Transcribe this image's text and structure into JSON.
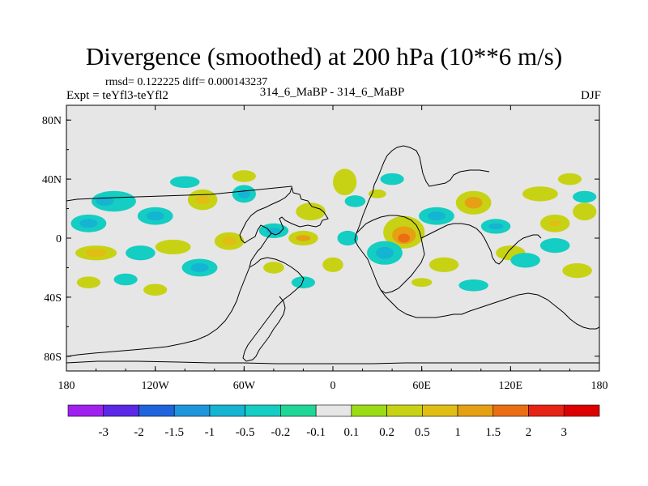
{
  "chart_data": {
    "type": "heatmap",
    "title": "Divergence (smoothed) at 200 hPa (10**6 m/s)",
    "stats_text": "rmsd= 0.122225 diff= 0.000143237",
    "expt_text": "Expt = teYfl3-teYfl2",
    "case_text": "314_6_MaBP - 314_6_MaBP",
    "season": "DJF",
    "variable": "Divergence (smoothed)",
    "level_hpa": 200,
    "units": "10**6 m/s",
    "rmsd": 0.122225,
    "diff": 0.000143237,
    "xlim": [
      -180,
      180
    ],
    "ylim": [
      -90,
      90
    ],
    "x_ticks": [
      {
        "value": -180,
        "label": "180"
      },
      {
        "value": -120,
        "label": "120W"
      },
      {
        "value": -60,
        "label": "60W"
      },
      {
        "value": 0,
        "label": "0"
      },
      {
        "value": 60,
        "label": "60E"
      },
      {
        "value": 120,
        "label": "120E"
      },
      {
        "value": 180,
        "label": "180"
      }
    ],
    "y_ticks": [
      {
        "value": 80,
        "label": "80N"
      },
      {
        "value": 40,
        "label": "40N"
      },
      {
        "value": 0,
        "label": "0"
      },
      {
        "value": -40,
        "label": "40S"
      },
      {
        "value": -80,
        "label": "80S"
      }
    ],
    "colorbar": {
      "levels": [
        {
          "value": -3,
          "label": "-3"
        },
        {
          "value": -2,
          "label": "-2"
        },
        {
          "value": -1.5,
          "label": "-1.5"
        },
        {
          "value": -1,
          "label": "-1"
        },
        {
          "value": -0.5,
          "label": "-0.5"
        },
        {
          "value": -0.2,
          "label": "-0.2"
        },
        {
          "value": -0.1,
          "label": "-0.1"
        },
        {
          "value": 0.1,
          "label": "0.1"
        },
        {
          "value": 0.2,
          "label": "0.2"
        },
        {
          "value": 0.5,
          "label": "0.5"
        },
        {
          "value": 1,
          "label": "1"
        },
        {
          "value": 1.5,
          "label": "1.5"
        },
        {
          "value": 2,
          "label": "2"
        },
        {
          "value": 3,
          "label": "3"
        }
      ],
      "colors": [
        "#a020f0",
        "#5a28e6",
        "#1e64dc",
        "#1e96dc",
        "#14b4d2",
        "#14cdc3",
        "#1ed796",
        "#e6e6e6",
        "#9bdc14",
        "#c8d214",
        "#e1be14",
        "#e6a014",
        "#eb6e14",
        "#e62314",
        "#dc0000"
      ]
    },
    "features": [
      {
        "lon": -148,
        "lat": 25,
        "rx": 15,
        "ry": 7,
        "level": "-0.2",
        "name": "pos-central-pacific-north-1"
      },
      {
        "lon": -154,
        "lat": 25,
        "rx": 6,
        "ry": 3,
        "level": "-0.5",
        "name": "core"
      },
      {
        "lon": -88,
        "lat": 26,
        "rx": 10,
        "ry": 7,
        "level": "0.2",
        "name": "pos-east-pacific-north"
      },
      {
        "lon": -88,
        "lat": 26,
        "rx": 5,
        "ry": 3,
        "level": "0.5",
        "name": "core"
      },
      {
        "lon": -15,
        "lat": 18,
        "rx": 10,
        "ry": 6,
        "level": "0.2",
        "name": "pos-atlantic-north"
      },
      {
        "lon": 8,
        "lat": 38,
        "rx": 8,
        "ry": 9,
        "level": "0.2",
        "name": "pos-europe"
      },
      {
        "lon": 48,
        "lat": 4,
        "rx": 14,
        "ry": 11,
        "level": "0.2",
        "name": "pos-east-africa"
      },
      {
        "lon": 48,
        "lat": 2,
        "rx": 8,
        "ry": 6,
        "level": "1",
        "name": "core"
      },
      {
        "lon": 48,
        "lat": 0,
        "rx": 4,
        "ry": 3,
        "level": "1.5",
        "name": "core"
      },
      {
        "lon": 95,
        "lat": 24,
        "rx": 12,
        "ry": 8,
        "level": "0.2",
        "name": "pos-india"
      },
      {
        "lon": 95,
        "lat": 24,
        "rx": 6,
        "ry": 4,
        "level": "1",
        "name": "core"
      },
      {
        "lon": 140,
        "lat": 30,
        "rx": 12,
        "ry": 5,
        "level": "0.2",
        "name": "pos-west-pacific-north"
      },
      {
        "lon": 150,
        "lat": 10,
        "rx": 10,
        "ry": 6,
        "level": "0.2",
        "name": "pos-west-pacific-tropic"
      },
      {
        "lon": 150,
        "lat": 10,
        "rx": 4,
        "ry": 2,
        "level": "0.5",
        "name": "core"
      },
      {
        "lon": -160,
        "lat": -10,
        "rx": 14,
        "ry": 5,
        "level": "0.2",
        "name": "pos-south-pacific-1"
      },
      {
        "lon": -160,
        "lat": -10,
        "rx": 7,
        "ry": 3,
        "level": "0.5",
        "name": "core"
      },
      {
        "lon": -108,
        "lat": -6,
        "rx": 12,
        "ry": 5,
        "level": "0.2",
        "name": "pos-south-pacific-2"
      },
      {
        "lon": -70,
        "lat": -2,
        "rx": 10,
        "ry": 6,
        "level": "0.2",
        "name": "pos-east-pacific-eq"
      },
      {
        "lon": -70,
        "lat": -2,
        "rx": 5,
        "ry": 3,
        "level": "0.5",
        "name": "core"
      },
      {
        "lon": -20,
        "lat": 0,
        "rx": 10,
        "ry": 5,
        "level": "0.2",
        "name": "pos-atlantic-eq"
      },
      {
        "lon": -20,
        "lat": 0,
        "rx": 5,
        "ry": 2,
        "level": "1",
        "name": "core"
      },
      {
        "lon": 0,
        "lat": -18,
        "rx": 7,
        "ry": 5,
        "level": "0.2",
        "name": "pos-africa-south"
      },
      {
        "lon": 75,
        "lat": -18,
        "rx": 10,
        "ry": 5,
        "level": "0.2",
        "name": "pos-indian-ocean"
      },
      {
        "lon": 120,
        "lat": -10,
        "rx": 10,
        "ry": 5,
        "level": "0.2",
        "name": "pos-indonesia-south"
      },
      {
        "lon": 165,
        "lat": -22,
        "rx": 10,
        "ry": 5,
        "level": "0.2",
        "name": "pos-southwest-pacific"
      },
      {
        "lon": 170,
        "lat": 18,
        "rx": 8,
        "ry": 6,
        "level": "0.2",
        "name": "pos-dateline-north"
      },
      {
        "lon": -165,
        "lat": -30,
        "rx": 8,
        "ry": 4,
        "level": "0.2",
        "name": "pos-south-pacific-3"
      },
      {
        "lon": -40,
        "lat": -20,
        "rx": 7,
        "ry": 4,
        "level": "0.2",
        "name": "pos-brazil"
      },
      {
        "lon": 30,
        "lat": 30,
        "rx": 6,
        "ry": 3,
        "level": "0.2",
        "name": "pos-mideast"
      },
      {
        "lon": -120,
        "lat": -35,
        "rx": 8,
        "ry": 4,
        "level": "0.2",
        "name": "pos-south-pacific-4"
      },
      {
        "lon": 60,
        "lat": -30,
        "rx": 7,
        "ry": 3,
        "level": "0.2",
        "name": "pos-indian-south"
      },
      {
        "lon": -60,
        "lat": 42,
        "rx": 8,
        "ry": 4,
        "level": "0.2",
        "name": "pos-atlantic-north-2"
      },
      {
        "lon": 160,
        "lat": 40,
        "rx": 8,
        "ry": 4,
        "level": "0.2",
        "name": "pos-north-pacific"
      },
      {
        "lon": -165,
        "lat": 10,
        "rx": 12,
        "ry": 6,
        "level": "-0.2",
        "name": "neg-central-pacific"
      },
      {
        "lon": -165,
        "lat": 10,
        "rx": 6,
        "ry": 3,
        "level": "-0.5",
        "name": "core"
      },
      {
        "lon": -120,
        "lat": 15,
        "rx": 12,
        "ry": 6,
        "level": "-0.2",
        "name": "neg-east-pacific-north"
      },
      {
        "lon": -120,
        "lat": 15,
        "rx": 6,
        "ry": 3,
        "level": "-0.5",
        "name": "core"
      },
      {
        "lon": -60,
        "lat": 30,
        "rx": 8,
        "ry": 6,
        "level": "-0.2",
        "name": "neg-north-america"
      },
      {
        "lon": -60,
        "lat": 30,
        "rx": 4,
        "ry": 3,
        "level": "-0.5",
        "name": "core"
      },
      {
        "lon": 35,
        "lat": -10,
        "rx": 12,
        "ry": 8,
        "level": "-0.2",
        "name": "neg-east-africa"
      },
      {
        "lon": 35,
        "lat": -10,
        "rx": 6,
        "ry": 4,
        "level": "-0.5",
        "name": "core"
      },
      {
        "lon": 70,
        "lat": 15,
        "rx": 12,
        "ry": 6,
        "level": "-0.2",
        "name": "neg-arabian-sea"
      },
      {
        "lon": 70,
        "lat": 15,
        "rx": 6,
        "ry": 3,
        "level": "-0.5",
        "name": "core"
      },
      {
        "lon": 110,
        "lat": 8,
        "rx": 10,
        "ry": 5,
        "level": "-0.2",
        "name": "neg-south-china-sea"
      },
      {
        "lon": 110,
        "lat": 8,
        "rx": 5,
        "ry": 2,
        "level": "-0.5",
        "name": "core"
      },
      {
        "lon": 130,
        "lat": -15,
        "rx": 10,
        "ry": 5,
        "level": "-0.2",
        "name": "neg-australia-north"
      },
      {
        "lon": -130,
        "lat": -10,
        "rx": 10,
        "ry": 5,
        "level": "-0.2",
        "name": "neg-south-pacific-1"
      },
      {
        "lon": -90,
        "lat": -20,
        "rx": 12,
        "ry": 6,
        "level": "-0.2",
        "name": "neg-south-pacific-2"
      },
      {
        "lon": -90,
        "lat": -20,
        "rx": 6,
        "ry": 3,
        "level": "-0.5",
        "name": "core"
      },
      {
        "lon": -40,
        "lat": 5,
        "rx": 10,
        "ry": 5,
        "level": "-0.2",
        "name": "neg-atlantic-eq"
      },
      {
        "lon": -40,
        "lat": 5,
        "rx": 5,
        "ry": 2,
        "level": "-0.5",
        "name": "core"
      },
      {
        "lon": 10,
        "lat": 0,
        "rx": 7,
        "ry": 5,
        "level": "-0.2",
        "name": "neg-gulf-of-guinea"
      },
      {
        "lon": 150,
        "lat": -5,
        "rx": 10,
        "ry": 5,
        "level": "-0.2",
        "name": "neg-west-pacific-south"
      },
      {
        "lon": 170,
        "lat": 28,
        "rx": 8,
        "ry": 4,
        "level": "-0.2",
        "name": "neg-north-pacific"
      },
      {
        "lon": -100,
        "lat": 38,
        "rx": 10,
        "ry": 4,
        "level": "-0.2",
        "name": "neg-north-america-2"
      },
      {
        "lon": 15,
        "lat": 25,
        "rx": 7,
        "ry": 4,
        "level": "-0.2",
        "name": "neg-sahara"
      },
      {
        "lon": 95,
        "lat": -32,
        "rx": 10,
        "ry": 4,
        "level": "-0.2",
        "name": "neg-indian-south"
      },
      {
        "lon": -140,
        "lat": -28,
        "rx": 8,
        "ry": 4,
        "level": "-0.2",
        "name": "neg-south-pacific-3"
      },
      {
        "lon": -20,
        "lat": -30,
        "rx": 8,
        "ry": 4,
        "level": "-0.2",
        "name": "neg-south-atlantic"
      },
      {
        "lon": 40,
        "lat": 40,
        "rx": 8,
        "ry": 4,
        "level": "-0.2",
        "name": "neg-caspian"
      }
    ]
  }
}
